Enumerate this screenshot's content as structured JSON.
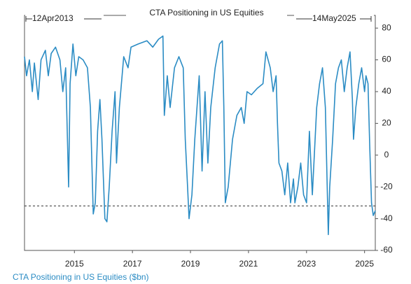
{
  "chart_data": {
    "type": "line",
    "title": "CTA Positioning in US Equities",
    "annotations": [
      "12Apr2013",
      "14May2025"
    ],
    "x": [
      2013.28,
      2013.35,
      2013.45,
      2013.55,
      2013.62,
      2013.75,
      2013.85,
      2014.0,
      2014.1,
      2014.2,
      2014.35,
      2014.5,
      2014.6,
      2014.7,
      2014.8,
      2014.85,
      2014.95,
      2015.05,
      2015.15,
      2015.3,
      2015.45,
      2015.55,
      2015.65,
      2015.72,
      2015.8,
      2015.88,
      2015.95,
      2016.05,
      2016.12,
      2016.2,
      2016.3,
      2016.4,
      2016.45,
      2016.55,
      2016.7,
      2016.85,
      2016.95,
      2017.2,
      2017.5,
      2017.7,
      2017.9,
      2018.05,
      2018.1,
      2018.2,
      2018.3,
      2018.45,
      2018.6,
      2018.75,
      2018.82,
      2018.9,
      2018.95,
      2019.05,
      2019.15,
      2019.3,
      2019.4,
      2019.5,
      2019.6,
      2019.7,
      2019.85,
      2020.0,
      2020.1,
      2020.15,
      2020.2,
      2020.3,
      2020.45,
      2020.6,
      2020.75,
      2020.85,
      2020.95,
      2021.1,
      2021.3,
      2021.5,
      2021.6,
      2021.75,
      2021.85,
      2021.95,
      2022.0,
      2022.05,
      2022.15,
      2022.25,
      2022.35,
      2022.45,
      2022.55,
      2022.6,
      2022.7,
      2022.8,
      2022.9,
      2023.0,
      2023.1,
      2023.2,
      2023.35,
      2023.45,
      2023.55,
      2023.65,
      2023.75,
      2023.8,
      2023.9,
      2024.0,
      2024.1,
      2024.2,
      2024.3,
      2024.4,
      2024.5,
      2024.58,
      2024.62,
      2024.7,
      2024.8,
      2024.9,
      2025.0,
      2025.05,
      2025.12,
      2025.18,
      2025.24,
      2025.3,
      2025.37
    ],
    "series": [
      {
        "name": "CTA Positioning in US Equities ($bn)",
        "color": "#2b8cc4",
        "values": [
          62,
          50,
          60,
          40,
          58,
          35,
          60,
          66,
          50,
          64,
          68,
          60,
          40,
          55,
          -20,
          45,
          70,
          50,
          62,
          60,
          55,
          30,
          -37,
          -30,
          15,
          35,
          10,
          -40,
          -42,
          -20,
          15,
          40,
          -5,
          30,
          62,
          55,
          68,
          70,
          72,
          68,
          73,
          75,
          25,
          50,
          30,
          55,
          62,
          55,
          10,
          -20,
          -40,
          -25,
          10,
          50,
          -10,
          40,
          -5,
          30,
          55,
          70,
          72,
          30,
          -30,
          -20,
          10,
          25,
          30,
          20,
          40,
          38,
          42,
          45,
          65,
          55,
          40,
          50,
          20,
          -5,
          -10,
          -25,
          -5,
          -30,
          -15,
          -30,
          -20,
          -5,
          -25,
          -30,
          15,
          -25,
          30,
          45,
          55,
          30,
          -50,
          -20,
          10,
          45,
          55,
          60,
          40,
          55,
          65,
          35,
          10,
          30,
          45,
          55,
          40,
          50,
          45,
          5,
          -30,
          -38,
          -35
        ]
      }
    ],
    "reference_line": -32,
    "xlim": [
      2013.28,
      2025.37
    ],
    "xticks": [
      2015,
      2017,
      2019,
      2021,
      2023,
      2025
    ],
    "ylim": [
      -60,
      88
    ],
    "yticks": [
      -60,
      -40,
      -20,
      0,
      20,
      40,
      60,
      80
    ]
  }
}
